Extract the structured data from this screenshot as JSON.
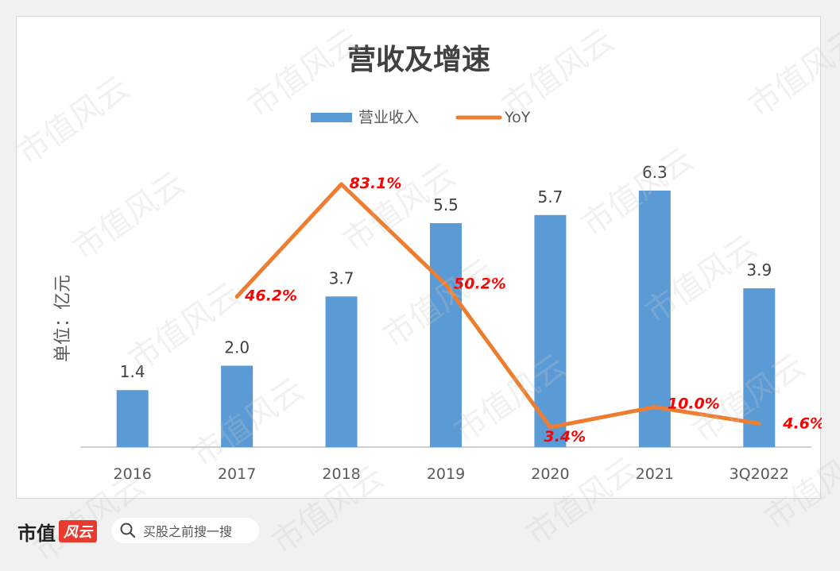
{
  "chart_data": {
    "type": "bar+line",
    "title": "营收及增速",
    "ylabel": "单位：亿元",
    "categories": [
      "2016",
      "2017",
      "2018",
      "2019",
      "2020",
      "2021",
      "3Q2022"
    ],
    "series": [
      {
        "name": "营业收入",
        "type": "bar",
        "color": "#5b9bd5",
        "values": [
          1.4,
          2.0,
          3.7,
          5.5,
          5.7,
          6.3,
          3.9
        ],
        "labels": [
          "1.4",
          "2.0",
          "3.7",
          "5.5",
          "5.7",
          "6.3",
          "3.9"
        ]
      },
      {
        "name": "YoY",
        "type": "line",
        "color": "#ed7d31",
        "values": [
          null,
          46.2,
          83.1,
          50.2,
          3.4,
          10.0,
          4.6
        ],
        "labels": [
          "",
          "46.2%",
          "83.1%",
          "50.2%",
          "3.4%",
          "10.0%",
          "4.6%"
        ]
      }
    ],
    "ylim_bar": [
      0,
      7
    ],
    "ylim_line": [
      0,
      90
    ],
    "grid": false,
    "legend": "top-center",
    "label_color_bar": "#404040",
    "label_color_line": "#ff0000"
  },
  "footer": {
    "brand": "市值",
    "brand_logo": "风云",
    "search_placeholder": "买股之前搜一搜"
  },
  "watermark_text": "市值风云"
}
